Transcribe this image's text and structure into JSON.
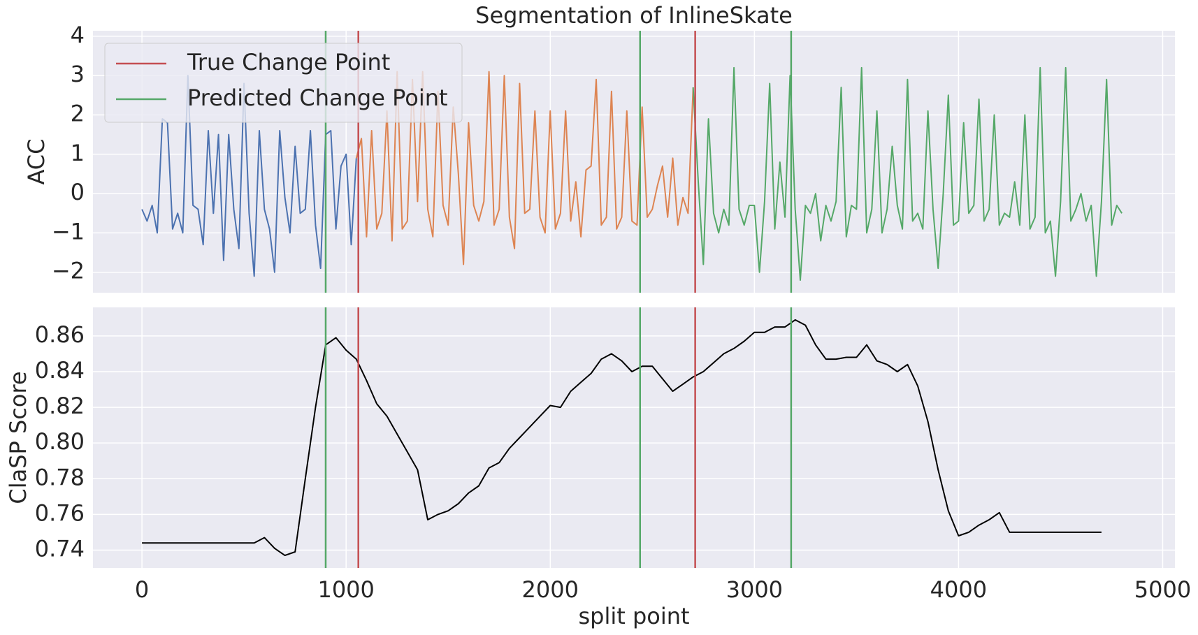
{
  "chart_data": [
    {
      "type": "line",
      "title": "Segmentation of InlineSkate",
      "ylabel": "ACC",
      "ylim": [
        -2.52,
        4.14
      ],
      "yticks": [
        {
          "value": -2,
          "label": "−2"
        },
        {
          "value": -1,
          "label": "−1"
        },
        0,
        1,
        2,
        3,
        4
      ],
      "grid": true,
      "legend": "upper left",
      "series": [
        {
          "color": "#4c72b0",
          "x": [
            0,
            25,
            50,
            75,
            100,
            125,
            150,
            175,
            200,
            225,
            250,
            275,
            300,
            325,
            350,
            375,
            400,
            425,
            450,
            475,
            500,
            525,
            550,
            575,
            600,
            625,
            650,
            675,
            700,
            725,
            750,
            775,
            800,
            825,
            850,
            875,
            900,
            925,
            950,
            975,
            1000,
            1025,
            1050
          ],
          "values": [
            -0.4,
            -0.7,
            -0.3,
            -1.0,
            1.9,
            1.8,
            -0.9,
            -0.5,
            -1.0,
            3.0,
            -0.3,
            -0.4,
            -1.3,
            1.6,
            -0.5,
            1.5,
            -1.7,
            1.5,
            -0.4,
            -1.4,
            2.8,
            -0.5,
            -2.1,
            1.6,
            -0.4,
            -0.9,
            -2.0,
            1.6,
            -0.1,
            -1.0,
            1.2,
            -0.5,
            -0.4,
            1.6,
            -0.8,
            -1.9,
            1.5,
            1.6,
            -0.9,
            0.7,
            1.0,
            -1.3,
            0.9
          ]
        },
        {
          "color": "#dd8452",
          "x": [
            1050,
            1075,
            1100,
            1125,
            1150,
            1175,
            1200,
            1225,
            1250,
            1275,
            1300,
            1325,
            1350,
            1375,
            1400,
            1425,
            1450,
            1475,
            1500,
            1525,
            1550,
            1575,
            1600,
            1625,
            1650,
            1675,
            1700,
            1725,
            1750,
            1775,
            1800,
            1825,
            1850,
            1875,
            1900,
            1925,
            1950,
            1975,
            2000,
            2025,
            2050,
            2075,
            2100,
            2125,
            2150,
            2175,
            2200,
            2225,
            2250,
            2275,
            2300,
            2325,
            2350,
            2375,
            2400,
            2425,
            2450,
            2475,
            2500,
            2525,
            2550,
            2575,
            2600,
            2625,
            2650,
            2675,
            2700
          ],
          "values": [
            0.9,
            1.4,
            -1.1,
            1.6,
            -0.9,
            -0.5,
            2.1,
            -1.2,
            3.1,
            -0.9,
            -0.7,
            2.9,
            -0.2,
            3.1,
            -0.4,
            -1.1,
            2.6,
            -0.3,
            -0.8,
            2.2,
            0.5,
            -1.8,
            1.8,
            -0.3,
            -0.7,
            -0.2,
            3.1,
            -0.8,
            -0.4,
            3.0,
            -0.6,
            -1.4,
            2.8,
            -0.5,
            -0.4,
            2.1,
            -0.6,
            -1.0,
            2.1,
            -0.9,
            -0.5,
            2.1,
            -0.7,
            0.3,
            -1.1,
            0.6,
            0.7,
            2.9,
            -0.8,
            -0.6,
            2.6,
            -0.9,
            -0.6,
            2.1,
            -0.7,
            -0.8,
            2.2,
            -0.6,
            -0.4,
            0.2,
            0.7,
            -0.6,
            0.9,
            -0.8,
            -0.1,
            -0.5,
            2.7
          ]
        },
        {
          "color": "#55a868",
          "x": [
            2700,
            2725,
            2750,
            2775,
            2800,
            2825,
            2850,
            2875,
            2900,
            2925,
            2950,
            2975,
            3000,
            3025,
            3050,
            3075,
            3100,
            3125,
            3150,
            3175,
            3200,
            3225,
            3250,
            3275,
            3300,
            3325,
            3350,
            3375,
            3400,
            3425,
            3450,
            3475,
            3500,
            3525,
            3550,
            3575,
            3600,
            3625,
            3650,
            3675,
            3700,
            3725,
            3750,
            3775,
            3800,
            3825,
            3850,
            3875,
            3900,
            3925,
            3950,
            3975,
            4000,
            4025,
            4050,
            4075,
            4100,
            4125,
            4150,
            4175,
            4200,
            4225,
            4250,
            4275,
            4300,
            4325,
            4350,
            4375,
            4400,
            4425,
            4450,
            4475,
            4500,
            4525,
            4550,
            4575,
            4600,
            4625,
            4650,
            4675,
            4700,
            4725,
            4750,
            4775,
            4800
          ],
          "values": [
            2.7,
            0.3,
            -1.8,
            1.9,
            -0.5,
            -1.0,
            -0.4,
            -0.8,
            3.2,
            -0.4,
            -0.8,
            -0.3,
            -0.3,
            -2.0,
            -0.2,
            2.8,
            -0.9,
            0.8,
            -0.6,
            3.0,
            -0.4,
            -2.2,
            -0.3,
            -0.5,
            0.0,
            -1.2,
            -0.3,
            -0.7,
            -0.2,
            2.7,
            -1.1,
            -0.3,
            -0.4,
            3.2,
            -1.0,
            -0.4,
            2.1,
            -1.0,
            -0.4,
            1.2,
            -0.3,
            -0.9,
            2.9,
            -0.7,
            -0.5,
            -0.9,
            2.1,
            -0.4,
            -1.9,
            0.0,
            2.5,
            -0.8,
            -0.7,
            1.8,
            -0.5,
            -0.3,
            2.4,
            -0.7,
            -0.4,
            2.0,
            -0.8,
            -0.5,
            -0.6,
            0.3,
            -0.8,
            2.0,
            -0.9,
            -0.6,
            3.2,
            -1.0,
            -0.7,
            -2.1,
            -0.2,
            3.2,
            -0.7,
            -0.4,
            0.0,
            -0.7,
            -0.3,
            -2.1,
            -0.2,
            2.9,
            -0.8,
            -0.3,
            -0.5
          ]
        }
      ],
      "vlines": [
        {
          "name": "True Change Point",
          "color": "#c44e52",
          "values": [
            1060,
            2710
          ]
        },
        {
          "name": "Predicted Change Point",
          "color": "#55a868",
          "values": [
            900,
            2440,
            3180
          ]
        }
      ]
    },
    {
      "type": "line",
      "xlabel": "split point",
      "ylabel": "ClaSP Score",
      "xlim": [
        -240,
        5060
      ],
      "xticks": [
        0,
        1000,
        2000,
        3000,
        4000,
        5000
      ],
      "ylim": [
        0.73,
        0.876
      ],
      "yticks": [
        0.74,
        0.76,
        0.78,
        {
          "value": 0.8,
          "label": "0.80"
        },
        0.82,
        0.84,
        0.86
      ],
      "grid": true,
      "series": [
        {
          "color": "#000000",
          "x": [
            0,
            50,
            100,
            150,
            200,
            250,
            300,
            350,
            400,
            450,
            500,
            550,
            600,
            650,
            700,
            750,
            800,
            850,
            900,
            950,
            1000,
            1050,
            1100,
            1150,
            1200,
            1250,
            1300,
            1350,
            1400,
            1450,
            1500,
            1550,
            1600,
            1650,
            1700,
            1750,
            1800,
            1850,
            1900,
            1950,
            2000,
            2050,
            2100,
            2150,
            2200,
            2250,
            2300,
            2350,
            2400,
            2450,
            2500,
            2550,
            2600,
            2650,
            2700,
            2750,
            2800,
            2850,
            2900,
            2950,
            3000,
            3050,
            3100,
            3150,
            3200,
            3250,
            3300,
            3350,
            3400,
            3450,
            3500,
            3550,
            3600,
            3650,
            3700,
            3750,
            3800,
            3850,
            3900,
            3950,
            4000,
            4050,
            4100,
            4150,
            4200,
            4250,
            4300,
            4350,
            4400,
            4450,
            4500,
            4550,
            4600,
            4650,
            4700
          ],
          "values": [
            0.744,
            0.744,
            0.744,
            0.744,
            0.744,
            0.744,
            0.744,
            0.744,
            0.744,
            0.744,
            0.744,
            0.744,
            0.747,
            0.741,
            0.737,
            0.739,
            0.78,
            0.82,
            0.855,
            0.859,
            0.852,
            0.847,
            0.835,
            0.822,
            0.815,
            0.805,
            0.795,
            0.785,
            0.757,
            0.76,
            0.762,
            0.766,
            0.772,
            0.776,
            0.786,
            0.789,
            0.797,
            0.803,
            0.809,
            0.815,
            0.821,
            0.82,
            0.829,
            0.834,
            0.839,
            0.847,
            0.85,
            0.846,
            0.84,
            0.843,
            0.843,
            0.836,
            0.829,
            0.833,
            0.837,
            0.84,
            0.845,
            0.85,
            0.853,
            0.857,
            0.862,
            0.862,
            0.865,
            0.865,
            0.869,
            0.866,
            0.855,
            0.847,
            0.847,
            0.848,
            0.848,
            0.855,
            0.846,
            0.844,
            0.84,
            0.844,
            0.832,
            0.812,
            0.785,
            0.762,
            0.748,
            0.75,
            0.754,
            0.757,
            0.761,
            0.75,
            0.75,
            0.75,
            0.75,
            0.75,
            0.75,
            0.75,
            0.75,
            0.75,
            0.75
          ]
        }
      ]
    }
  ]
}
